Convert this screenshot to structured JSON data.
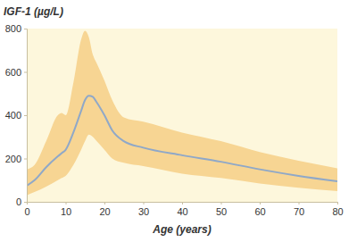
{
  "chart_data": {
    "type": "line",
    "x_label": "Age (years)",
    "y_label": "IGF-1 (µg/L)",
    "x": [
      0,
      2,
      5,
      8,
      9,
      10,
      12,
      14,
      15,
      16,
      17,
      18,
      20,
      22,
      25,
      30,
      40,
      50,
      60,
      70,
      80
    ],
    "series": [
      {
        "type": "area",
        "color": "#f7d593",
        "lower": [
          30,
          45,
          70,
          100,
          110,
          120,
          170,
          240,
          280,
          310,
          300,
          280,
          240,
          200,
          180,
          165,
          130,
          110,
          85,
          65,
          50
        ],
        "upper": [
          150,
          170,
          280,
          400,
          410,
          400,
          550,
          750,
          790,
          760,
          680,
          640,
          560,
          470,
          390,
          370,
          320,
          280,
          230,
          190,
          155
        ]
      },
      {
        "type": "line",
        "color": "#8fa8c8",
        "values": [
          75,
          100,
          160,
          210,
          225,
          240,
          320,
          420,
          470,
          490,
          485,
          460,
          400,
          330,
          280,
          250,
          215,
          185,
          150,
          120,
          95
        ]
      }
    ],
    "xlim": [
      0,
      80
    ],
    "xticks": [
      0,
      10,
      20,
      30,
      40,
      50,
      60,
      70,
      80
    ],
    "ylim": [
      0,
      800
    ],
    "yticks": [
      0,
      200,
      400,
      600,
      800
    ],
    "grid": false
  }
}
